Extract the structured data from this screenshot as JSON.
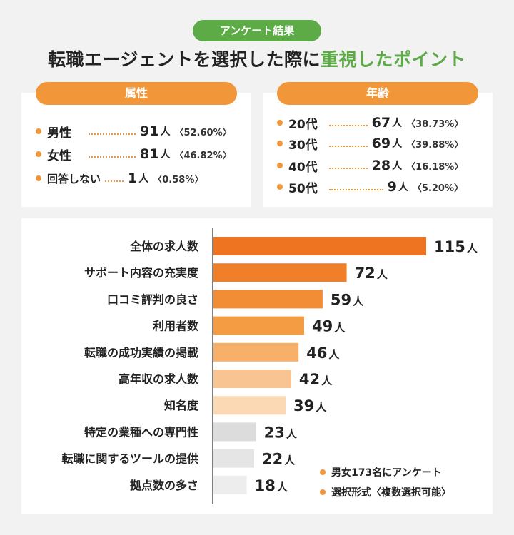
{
  "badge": "アンケート結果",
  "title": {
    "main": "転職エージェントを選択した際に",
    "highlight": "重視したポイント"
  },
  "attributes": {
    "header": "属性",
    "rows": [
      {
        "label": "男性",
        "count": "91",
        "unit": "人",
        "pct": "〈52.60%〉"
      },
      {
        "label": "女性",
        "count": "81",
        "unit": "人",
        "pct": "〈46.82%〉"
      },
      {
        "label": "回答しない",
        "count": "1",
        "unit": "人",
        "pct": "〈0.58%〉"
      }
    ]
  },
  "age": {
    "header": "年齢",
    "rows": [
      {
        "label": "20代",
        "count": "67",
        "unit": "人",
        "pct": "〈38.73%〉"
      },
      {
        "label": "30代",
        "count": "69",
        "unit": "人",
        "pct": "〈39.88%〉"
      },
      {
        "label": "40代",
        "count": "28",
        "unit": "人",
        "pct": "〈16.18%〉"
      },
      {
        "label": "50代",
        "count": "9",
        "unit": "人",
        "pct": "〈5.20%〉"
      }
    ]
  },
  "chart_data": {
    "type": "bar",
    "orientation": "horizontal",
    "unit": "人",
    "categories": [
      "全体の求人数",
      "サポート内容の充実度",
      "口コミ評判の良さ",
      "利用者数",
      "転職の成功実績の掲載",
      "高年収の求人数",
      "知名度",
      "特定の業種への専門性",
      "転職に関するツールの提供",
      "拠点数の多さ"
    ],
    "values": [
      115,
      72,
      59,
      49,
      46,
      42,
      39,
      23,
      22,
      18
    ],
    "colors": [
      "#ef7422",
      "#f07f2a",
      "#f28d35",
      "#f49c44",
      "#f6b06a",
      "#f8c491",
      "#fbd9b5",
      "#dcdcdc",
      "#e5e5e5",
      "#ededed"
    ],
    "xlim": [
      0,
      115
    ]
  },
  "notes": [
    "男女173名にアンケート",
    "選択形式〈複数選択可能〉"
  ],
  "colors": {
    "accent_green": "#5cab46",
    "accent_orange": "#f2963a"
  }
}
